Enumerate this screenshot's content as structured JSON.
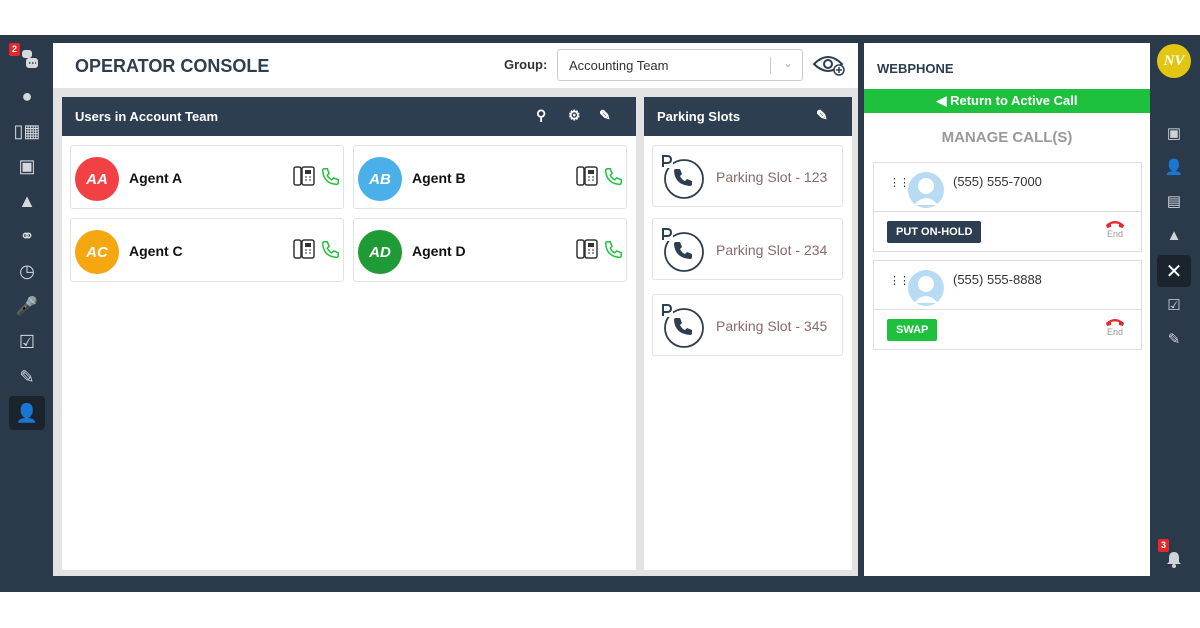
{
  "left_sidebar": {
    "chat_badge": "2",
    "icons": [
      "group-chat-icon",
      "chat-icon",
      "desk-phone-icon",
      "voicemail-icon",
      "org-chart-icon",
      "headset-icon",
      "history-icon",
      "microphone-icon",
      "checklist-icon",
      "notes-icon",
      "operator-icon"
    ],
    "active": "operator-icon"
  },
  "header": {
    "title": "OPERATOR CONSOLE",
    "group_label": "Group:",
    "group_value": "Accounting Team"
  },
  "users_panel": {
    "title": "Users in Account Team",
    "agents": [
      {
        "initials": "AA",
        "name": "Agent A",
        "color": "#f24145"
      },
      {
        "initials": "AB",
        "name": "Agent B",
        "color": "#4bb0ea"
      },
      {
        "initials": "AC",
        "name": "Agent C",
        "color": "#f5a70f"
      },
      {
        "initials": "AD",
        "name": "Agent D",
        "color": "#1e9b34"
      }
    ]
  },
  "parking_panel": {
    "title": "Parking Slots",
    "slots": [
      "Parking Slot - 123",
      "Parking Slot - 234",
      "Parking Slot - 345"
    ]
  },
  "webphone": {
    "title": "WEBPHONE",
    "return_label": "Return to Active Call",
    "manage_title": "MANAGE CALL(S)",
    "calls": [
      {
        "number": "(555) 555-7000",
        "action": "PUT ON-HOLD",
        "end": "End"
      },
      {
        "number": "(555) 555-8888",
        "action": "SWAP",
        "end": "End"
      }
    ]
  },
  "right_sidebar": {
    "avatar": "NV",
    "notification_badge": "3"
  },
  "colors": {
    "dark": "#2b3a4b",
    "green": "#1ec13d",
    "header": "#2d3e50"
  }
}
